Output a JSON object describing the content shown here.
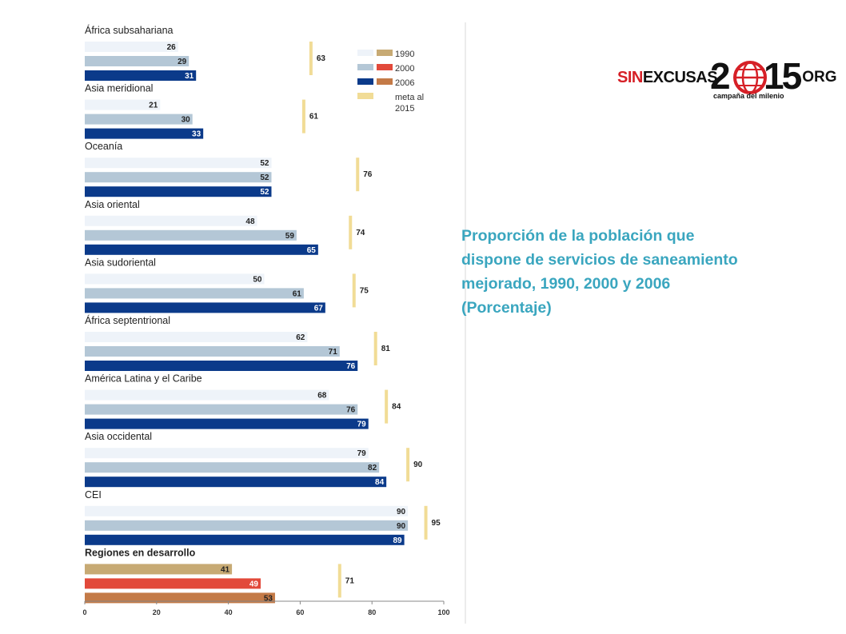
{
  "caption": {
    "line1": "Proporción de la población que",
    "line2": "dispone de servicios de saneamiento",
    "line3": "mejorado, 1990, 2000 y 2006",
    "line4": "(Porcentaje)"
  },
  "logo": {
    "sin": "SIN",
    "excusas": "EXCUSAS",
    "two": "2",
    "fifteen": "15",
    "org": ".ORG",
    "tagline": "campaña del milenio",
    "globe_icon": "globe-icon"
  },
  "chart_data": {
    "type": "bar",
    "orientation": "horizontal",
    "xlim": [
      0,
      100
    ],
    "xticks": [
      "0",
      "20",
      "40",
      "60",
      "80",
      "100"
    ],
    "legend": {
      "placement": "top-right",
      "entries": [
        {
          "label": "1990",
          "color": "#c7aa74"
        },
        {
          "label": "2000",
          "color": "#e2493a"
        },
        {
          "label": "2006",
          "color": "#c47a47"
        },
        {
          "label": "meta al",
          "label2": "2015",
          "color": "#f1dc96"
        }
      ]
    },
    "series_colors": {
      "standard": [
        "#eef3f9",
        "#b4c7d6",
        "#0b3a8a"
      ],
      "highlight": [
        "#c7aa74",
        "#e2493a",
        "#c47a47"
      ],
      "target": "#f1dc96"
    },
    "groups": [
      {
        "name": "África subsahariana",
        "values": [
          26,
          29,
          31
        ],
        "target": 63
      },
      {
        "name": "Asia meridional",
        "values": [
          21,
          30,
          33
        ],
        "target": 61
      },
      {
        "name": "Oceanía",
        "values": [
          52,
          52,
          52
        ],
        "target": 76
      },
      {
        "name": "Asia oriental",
        "values": [
          48,
          59,
          65
        ],
        "target": 74
      },
      {
        "name": "Asia sudoriental",
        "values": [
          50,
          61,
          67
        ],
        "target": 75
      },
      {
        "name": "África septentrional",
        "values": [
          62,
          71,
          76
        ],
        "target": 81
      },
      {
        "name": "América Latina y el Caribe",
        "values": [
          68,
          76,
          79
        ],
        "target": 84
      },
      {
        "name": "Asia occidental",
        "values": [
          79,
          82,
          84
        ],
        "target": 90
      },
      {
        "name": "CEI",
        "values": [
          90,
          90,
          89
        ],
        "target": 95
      },
      {
        "name": "Regiones en desarrollo",
        "values": [
          41,
          49,
          53
        ],
        "target": 71,
        "highlight": true
      }
    ]
  }
}
